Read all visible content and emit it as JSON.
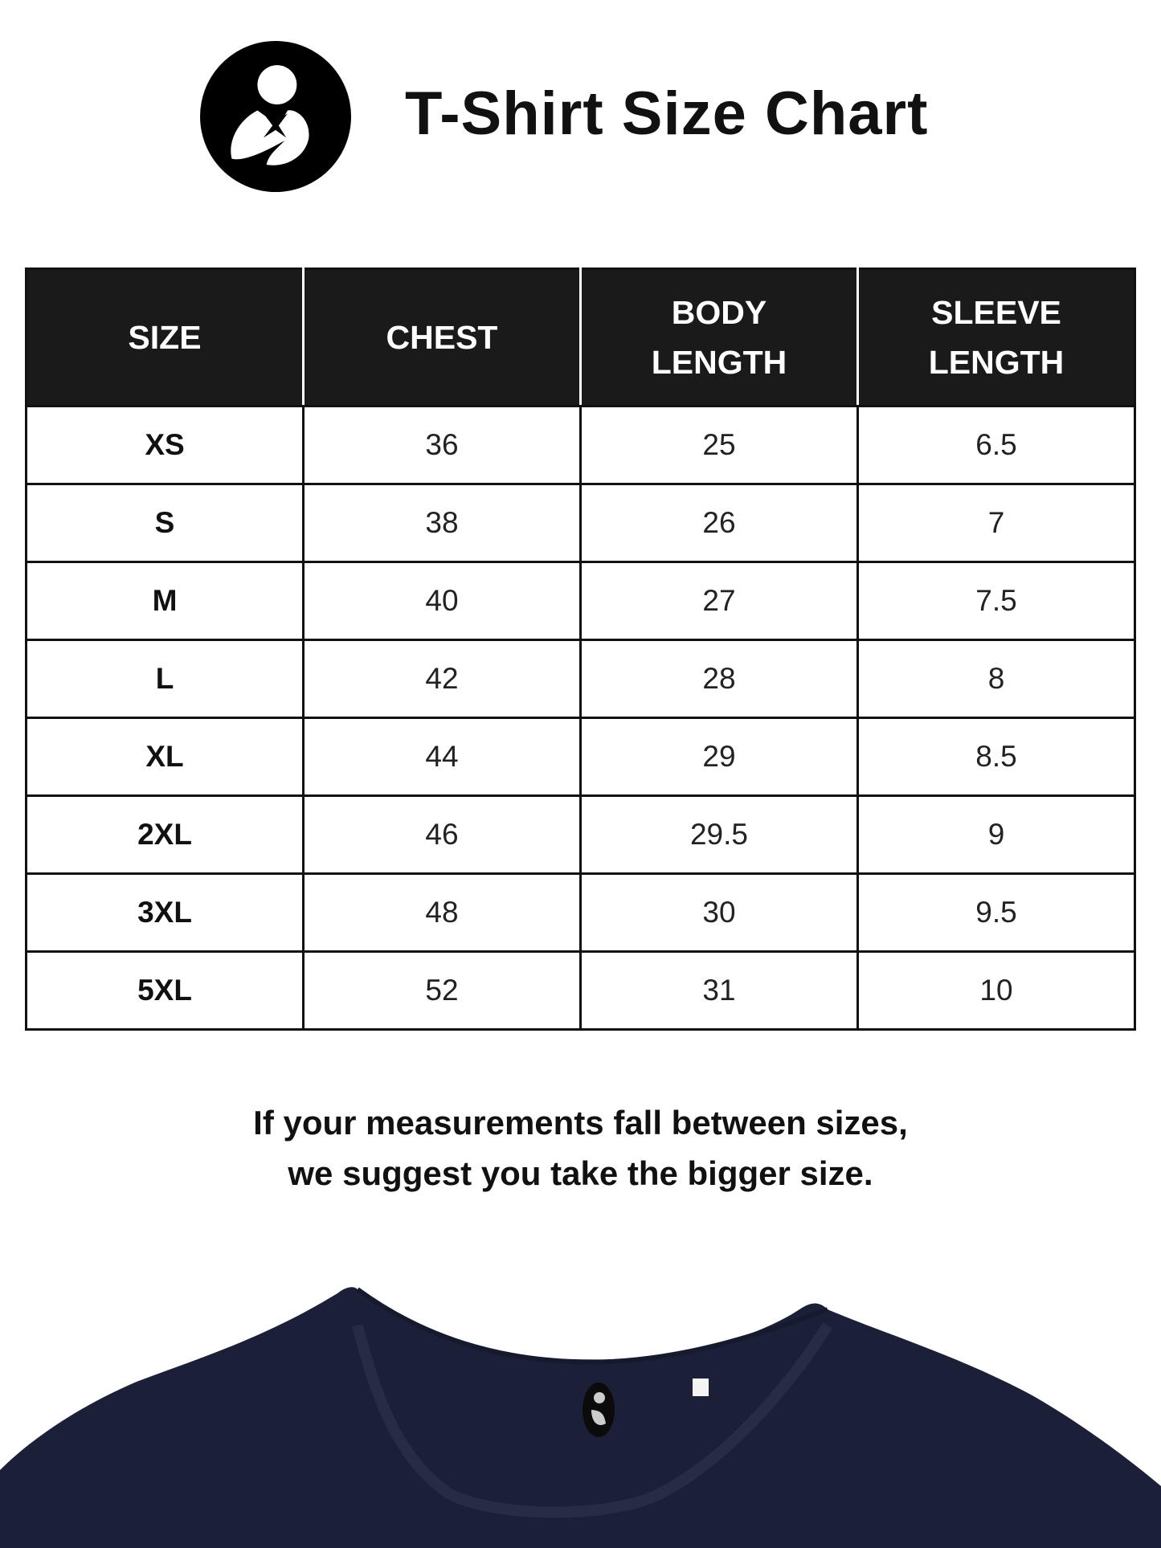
{
  "header": {
    "title": "T-Shirt Size Chart",
    "logo_icon": "mother-child-logo-icon"
  },
  "table": {
    "columns": [
      "SIZE",
      "CHEST",
      "BODY\nLENGTH",
      "SLEEVE\nLENGTH"
    ],
    "rows": [
      [
        "XS",
        "36",
        "25",
        "6.5"
      ],
      [
        "S",
        "38",
        "26",
        "7"
      ],
      [
        "M",
        "40",
        "27",
        "7.5"
      ],
      [
        "L",
        "42",
        "28",
        "8"
      ],
      [
        "XL",
        "44",
        "29",
        "8.5"
      ],
      [
        "2XL",
        "46",
        "29.5",
        "9"
      ],
      [
        "3XL",
        "48",
        "30",
        "9.5"
      ],
      [
        "5XL",
        "52",
        "31",
        "10"
      ]
    ]
  },
  "note": {
    "line1": "If your measurements fall between sizes,",
    "line2": "we suggest you take the bigger size."
  },
  "colors": {
    "header_bg": "#1a1a1a",
    "shirt": "#1b2038"
  }
}
